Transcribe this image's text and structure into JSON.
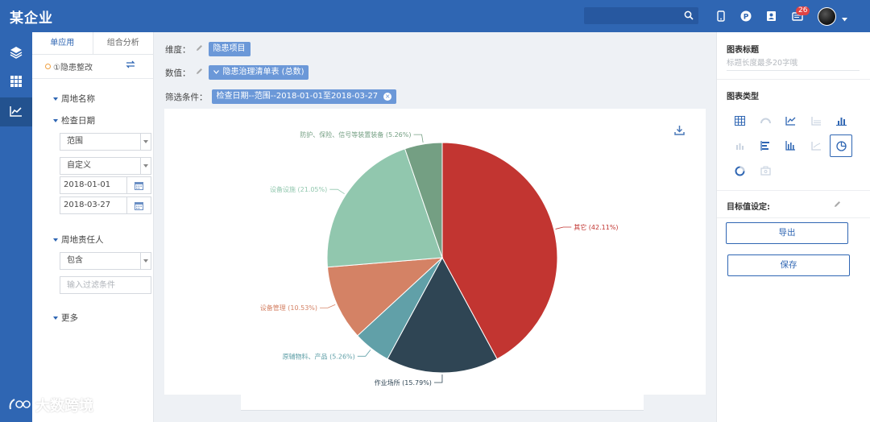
{
  "header": {
    "brand": "某企业",
    "badge_count": "26"
  },
  "rail": {
    "items": [
      {
        "icon": "layers-icon"
      },
      {
        "icon": "grid-icon"
      },
      {
        "icon": "line-chart-icon"
      }
    ]
  },
  "filter_panel": {
    "tabs": [
      "单应用",
      "组合分析"
    ],
    "dataset": "①隐患整改",
    "fields": {
      "site_name": "周地名称",
      "check_date": "检查日期",
      "range_select": "范围",
      "custom_select": "自定义",
      "date_from": "2018-01-01",
      "date_to": "2018-03-27",
      "site_owner": "周地责任人",
      "contains_select": "包含",
      "filter_placeholder": "输入过滤条件",
      "more": "更多"
    }
  },
  "config": {
    "dimension_label": "维度：",
    "dimension_value": "隐患项目",
    "value_label": "数值：",
    "value_value": "隐患治理清单表 (总数)",
    "filter_label": "筛选条件：",
    "filter_value": "检查日期--范围--2018-01-01至2018-03-27"
  },
  "chart_data": {
    "type": "pie",
    "title": "",
    "slices": [
      {
        "label": "其它 (42.11%)",
        "value": 42.11,
        "color": "#c23531"
      },
      {
        "label": "作业场所 (15.79%)",
        "value": 15.79,
        "color": "#2f4554"
      },
      {
        "label": "原辅物料、产品 (5.26%)",
        "value": 5.26,
        "color": "#61a0a8"
      },
      {
        "label": "设备管理 (10.53%)",
        "value": 10.53,
        "color": "#d48265"
      },
      {
        "label": "设备设施 (21.05%)",
        "value": 21.05,
        "color": "#91c7ae"
      },
      {
        "label": "防护、保险、信号等装置装备 (5.26%)",
        "value": 5.26,
        "color": "#749f83"
      }
    ]
  },
  "right_panel": {
    "chart_title_label": "图表标题",
    "chart_title_placeholder": "标题长度最多20字哦",
    "chart_type_label": "图表类型",
    "target_label": "目标值设定:",
    "export_button": "导出",
    "save_button": "保存"
  },
  "watermark": {
    "text": "大数跨境"
  }
}
